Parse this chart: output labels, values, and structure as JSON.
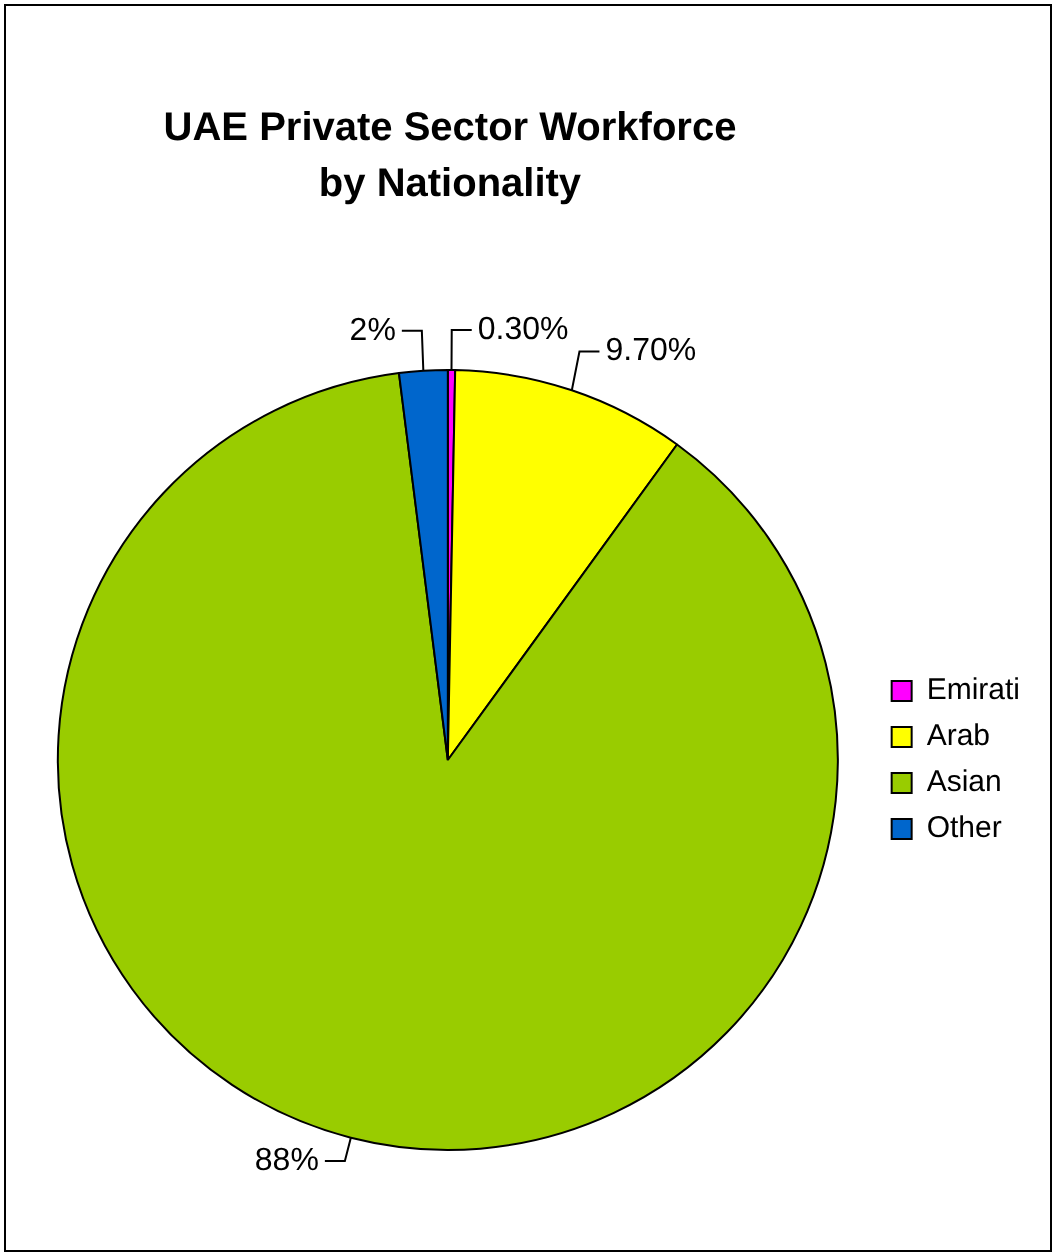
{
  "chart_data": {
    "type": "pie",
    "title": "UAE Private Sector Workforce by Nationality",
    "categories": [
      "Emirati",
      "Arab",
      "Asian",
      "Other"
    ],
    "values": [
      0.3,
      9.7,
      88,
      2
    ],
    "value_labels": [
      "0.30%",
      "9.70%",
      "88%",
      "2%"
    ],
    "colors": [
      "#ff00ff",
      "#ffff00",
      "#99cc00",
      "#0066cc"
    ],
    "legend": "right"
  }
}
